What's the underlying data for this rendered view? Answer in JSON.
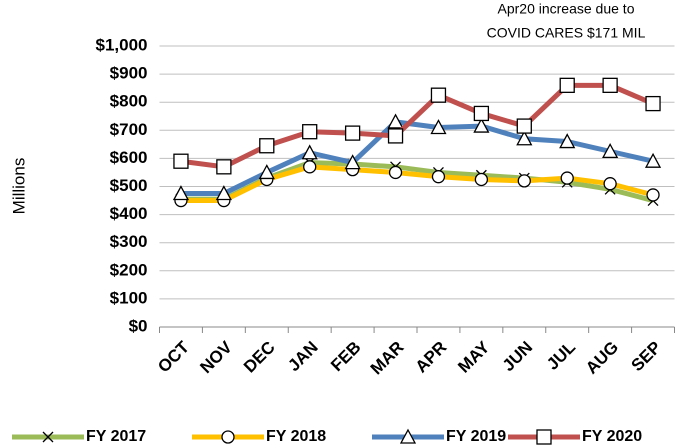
{
  "chart_data": {
    "type": "line",
    "y_label": "Millions",
    "annotation": [
      "Apr20 increase due to",
      "COVID CARES $171 MIL"
    ],
    "categories": [
      "OCT",
      "NOV",
      "DEC",
      "JAN",
      "FEB",
      "MAR",
      "APR",
      "MAY",
      "JUN",
      "JUL",
      "AUG",
      "SEP"
    ],
    "series": [
      {
        "name": "FY 2017",
        "color": "#9bbb59",
        "marker": "x",
        "values": [
          455,
          455,
          530,
          585,
          580,
          570,
          550,
          540,
          530,
          515,
          490,
          450
        ]
      },
      {
        "name": "FY 2018",
        "color": "#ffc000",
        "marker": "circle",
        "values": [
          450,
          450,
          525,
          570,
          560,
          550,
          535,
          525,
          520,
          530,
          510,
          470
        ]
      },
      {
        "name": "FY 2019",
        "color": "#4f81bd",
        "marker": "triangle",
        "values": [
          475,
          475,
          550,
          620,
          585,
          730,
          710,
          715,
          670,
          660,
          625,
          590
        ]
      },
      {
        "name": "FY 2020",
        "color": "#c0504d",
        "marker": "square",
        "values": [
          590,
          570,
          645,
          695,
          690,
          680,
          825,
          760,
          715,
          860,
          860,
          795
        ]
      }
    ],
    "ylim": [
      0,
      1000
    ],
    "yticks": [
      {
        "value": 0,
        "label": "$0"
      },
      {
        "value": 100,
        "label": "$100"
      },
      {
        "value": 200,
        "label": "$200"
      },
      {
        "value": 300,
        "label": "$300"
      },
      {
        "value": 400,
        "label": "$400"
      },
      {
        "value": 500,
        "label": "$500"
      },
      {
        "value": 600,
        "label": "$600"
      },
      {
        "value": 700,
        "label": "$700"
      },
      {
        "value": 800,
        "label": "$800"
      },
      {
        "value": 900,
        "label": "$900"
      },
      {
        "value": 1000,
        "label": "$1,000"
      }
    ],
    "grid": true,
    "legend": "bottom"
  }
}
